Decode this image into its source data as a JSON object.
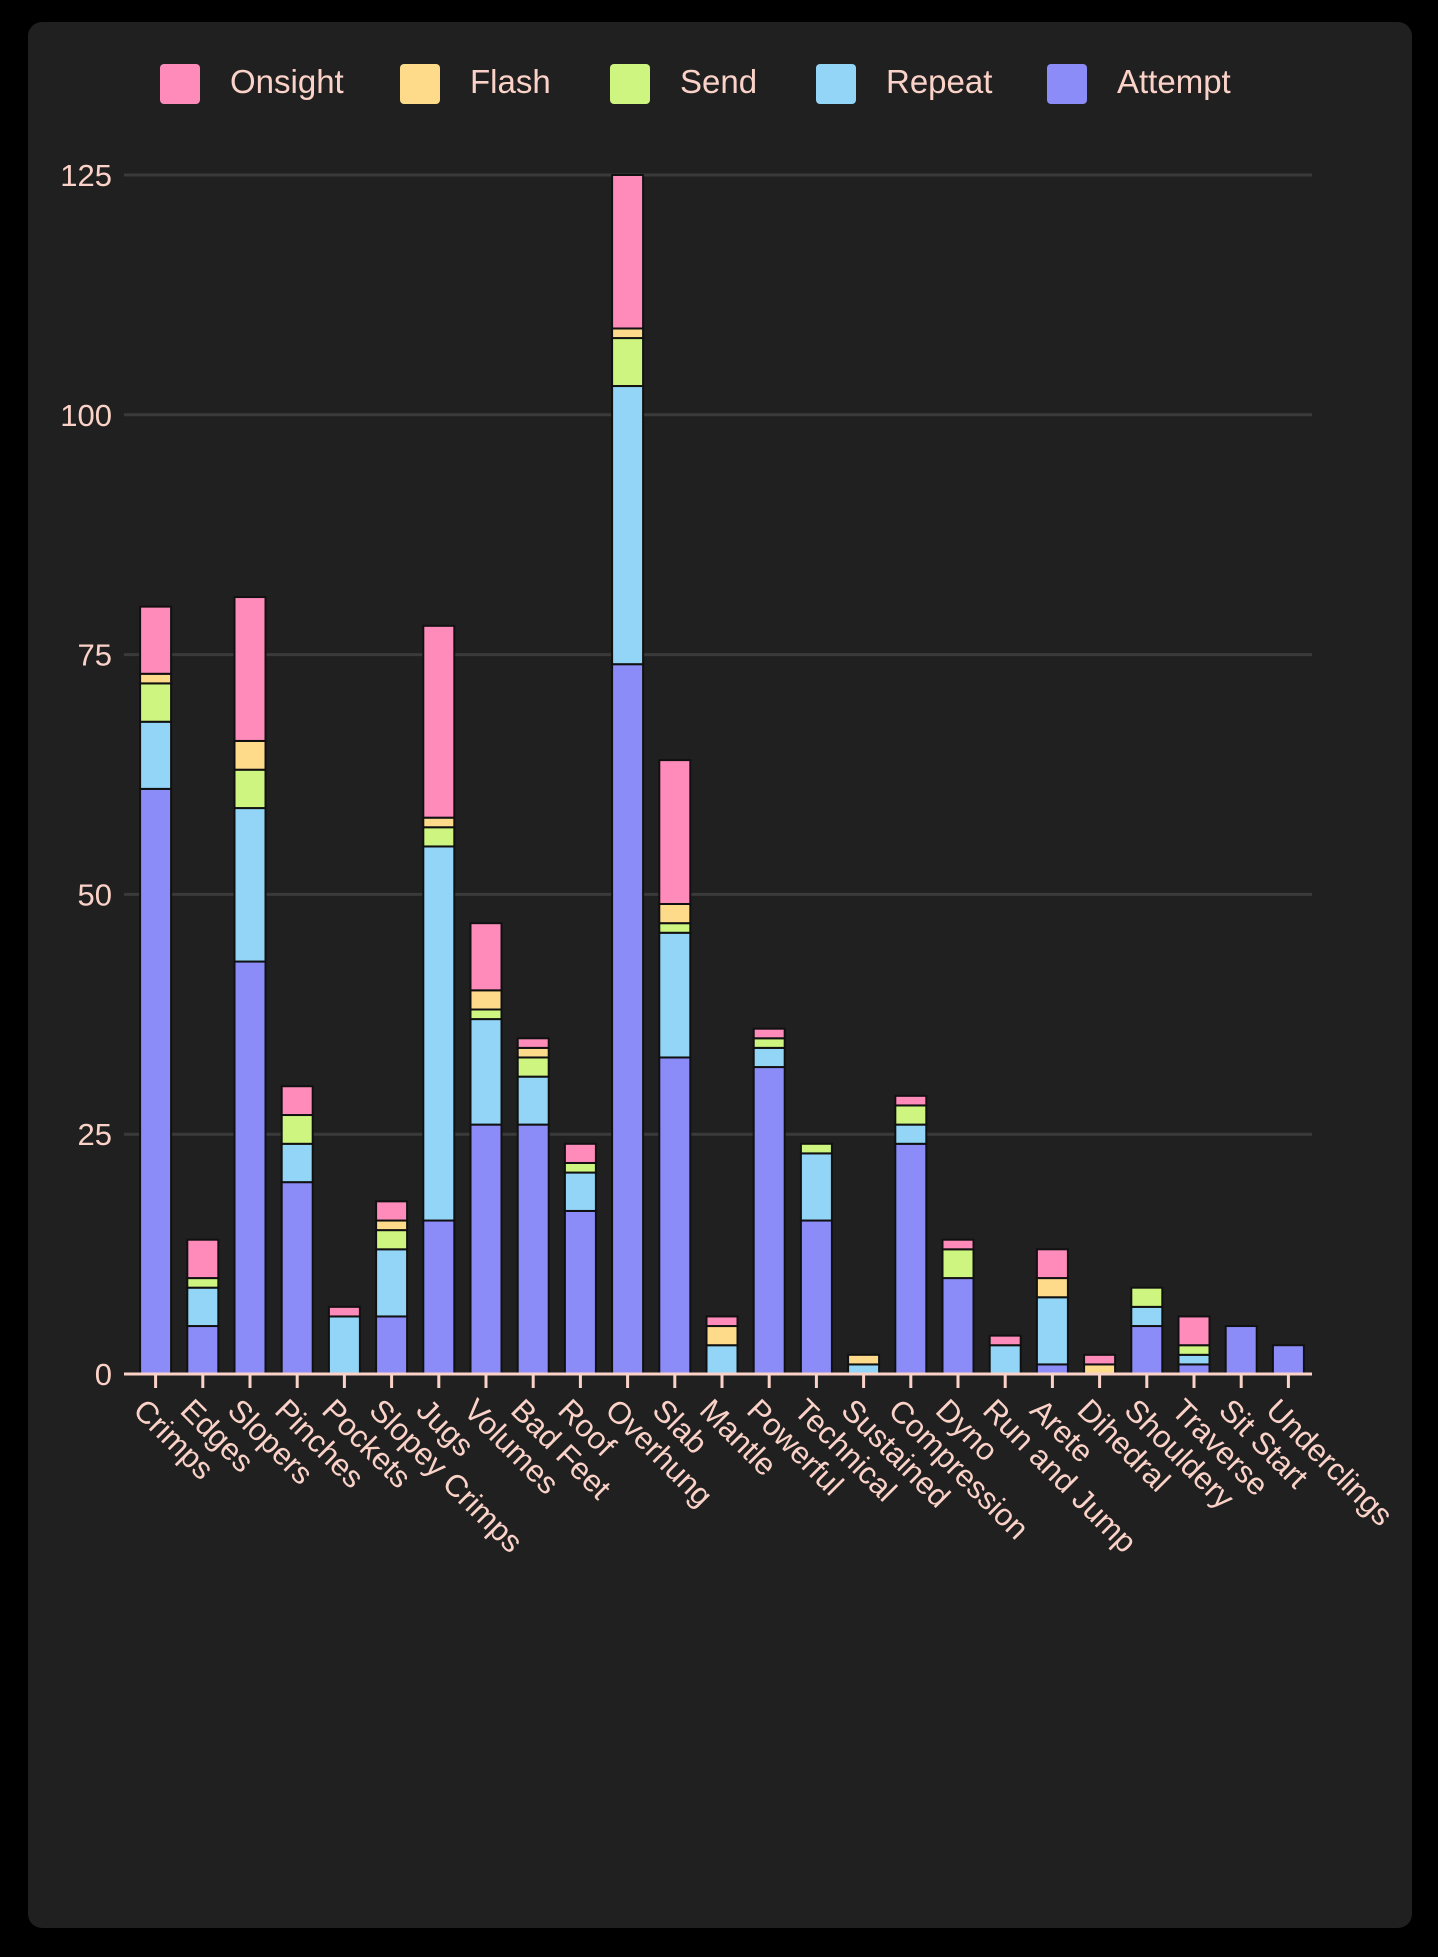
{
  "chart_data": {
    "type": "bar",
    "stacked": true,
    "legend_position": "top",
    "grid": true,
    "ylim": [
      0,
      125
    ],
    "yticks": [
      0,
      25,
      50,
      75,
      100,
      125
    ],
    "categories": [
      "Crimps",
      "Edges",
      "Slopers",
      "Pinches",
      "Pockets",
      "Slopey Crimps",
      "Jugs",
      "Volumes",
      "Bad Feet",
      "Roof",
      "Overhung",
      "Slab",
      "Mantle",
      "Powerful",
      "Technical",
      "Sustained",
      "Compression",
      "Dyno",
      "Run and Jump",
      "Arete",
      "Dihedral",
      "Shouldery",
      "Traverse",
      "Sit Start",
      "Underclings"
    ],
    "series": [
      {
        "name": "Attempt",
        "color": "#8b8cf8",
        "values": [
          61,
          5,
          43,
          20,
          0,
          6,
          16,
          26,
          26,
          17,
          74,
          33,
          0,
          32,
          16,
          0,
          24,
          10,
          0,
          1,
          0,
          5,
          1,
          5,
          3
        ]
      },
      {
        "name": "Repeat",
        "color": "#92d5f6",
        "values": [
          7,
          4,
          16,
          4,
          6,
          7,
          39,
          11,
          5,
          4,
          29,
          13,
          3,
          2,
          7,
          1,
          2,
          0,
          3,
          7,
          0,
          2,
          1,
          0,
          0
        ]
      },
      {
        "name": "Send",
        "color": "#cdf57f",
        "values": [
          4,
          1,
          4,
          3,
          0,
          2,
          2,
          1,
          2,
          1,
          5,
          1,
          0,
          1,
          1,
          0,
          2,
          3,
          0,
          0,
          0,
          2,
          1,
          0,
          0
        ]
      },
      {
        "name": "Flash",
        "color": "#fedb8a",
        "values": [
          1,
          0,
          3,
          0,
          0,
          1,
          1,
          2,
          1,
          0,
          1,
          2,
          2,
          0,
          0,
          1,
          0,
          0,
          0,
          2,
          1,
          0,
          0,
          0,
          0
        ]
      },
      {
        "name": "Onsight",
        "color": "#fe8bba",
        "values": [
          7,
          4,
          15,
          3,
          1,
          2,
          20,
          7,
          1,
          2,
          16,
          15,
          1,
          1,
          0,
          0,
          1,
          1,
          1,
          3,
          1,
          0,
          3,
          0,
          0
        ]
      }
    ],
    "legend_order": [
      "Onsight",
      "Flash",
      "Send",
      "Repeat",
      "Attempt"
    ],
    "colors": {
      "background": "#202020",
      "page": "#000000",
      "grid": "#3a3a3a",
      "text": "#fbd2c8",
      "axis": "#fbd2c8",
      "segment_border": "#111111"
    }
  }
}
